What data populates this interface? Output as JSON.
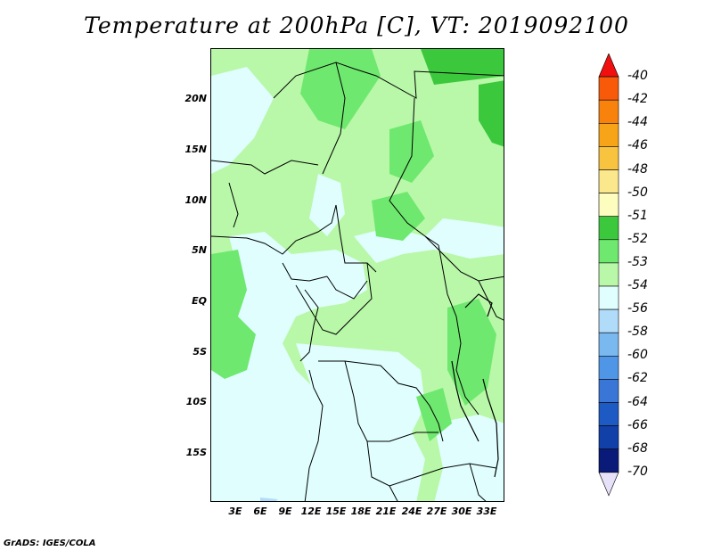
{
  "title": "Temperature at 200hPa [C], VT: 2019092100",
  "credit": "GrADS: IGES/COLA",
  "lat_labels": [
    "20N",
    "15N",
    "10N",
    "5N",
    "EQ",
    "5S",
    "10S",
    "15S"
  ],
  "lon_labels": [
    "3E",
    "6E",
    "9E",
    "12E",
    "15E",
    "18E",
    "21E",
    "24E",
    "27E",
    "30E",
    "33E"
  ],
  "legend": {
    "labels": [
      "-40",
      "-42",
      "-44",
      "-46",
      "-48",
      "-50",
      "-51",
      "-52",
      "-53",
      "-54",
      "-56",
      "-58",
      "-60",
      "-62",
      "-64",
      "-66",
      "-68",
      "-70"
    ],
    "colors": [
      "#f01010",
      "#f85a0a",
      "#f8820c",
      "#f8a418",
      "#f8c440",
      "#fbe88c",
      "#fdfdc0",
      "#3cc83c",
      "#6ee86e",
      "#b8f8a8",
      "#e0fefe",
      "#b0dcfa",
      "#7ab8f0",
      "#5096e6",
      "#3a76d6",
      "#1e5ac4",
      "#1040a8",
      "#0a1a78",
      "#e6e0f8"
    ]
  },
  "colors": {
    "light_cyan": "#e0fefe",
    "pale_green": "#b8f8a8",
    "light_green": "#6ee86e",
    "green": "#3cc83c"
  }
}
